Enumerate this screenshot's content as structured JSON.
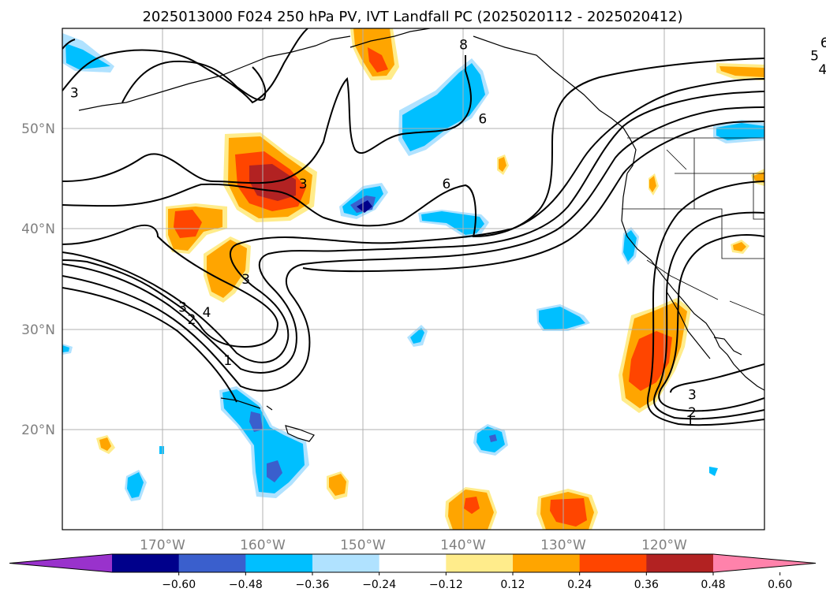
{
  "title": "2025013000 F024 250 hPa PV, IVT Landfall PC (2025020112 - 2025020412)",
  "map": {
    "lat_labels": [
      "50°N",
      "40°N",
      "30°N",
      "20°N"
    ],
    "lon_labels": [
      "170°W",
      "160°W",
      "150°W",
      "140°W",
      "130°W",
      "120°W"
    ],
    "lon_range": [
      -180,
      -110
    ],
    "lat_range": [
      10,
      60
    ],
    "contour_labels": [
      {
        "text": "6",
        "lon": -104.0,
        "lat": 58.6
      },
      {
        "text": "5",
        "lon": -105.0,
        "lat": 57.3
      },
      {
        "text": "4",
        "lon": -104.2,
        "lat": 55.9
      },
      {
        "text": "8",
        "lon": -140.0,
        "lat": 58.4
      },
      {
        "text": "6",
        "lon": -138.1,
        "lat": 51.0
      },
      {
        "text": "6",
        "lon": -141.7,
        "lat": 44.5
      },
      {
        "text": "3",
        "lon": -156.0,
        "lat": 44.5
      },
      {
        "text": "3",
        "lon": -178.8,
        "lat": 53.6
      },
      {
        "text": "3",
        "lon": -161.7,
        "lat": 35.0
      },
      {
        "text": "3",
        "lon": -168.0,
        "lat": 32.2
      },
      {
        "text": "2",
        "lon": -167.1,
        "lat": 31.0
      },
      {
        "text": "4",
        "lon": -165.6,
        "lat": 31.7
      },
      {
        "text": "1",
        "lon": -163.5,
        "lat": 26.9
      },
      {
        "text": "3",
        "lon": -117.2,
        "lat": 23.5
      },
      {
        "text": "2",
        "lon": -117.2,
        "lat": 21.7
      },
      {
        "text": "1",
        "lon": -117.4,
        "lat": 20.9
      }
    ]
  },
  "colorbar": {
    "ticks": [
      "−0.60",
      "−0.48",
      "−0.36",
      "−0.24",
      "−0.12",
      "0.12",
      "0.24",
      "0.36",
      "0.48",
      "0.60"
    ],
    "colors": [
      "#9932cc",
      "#00008b",
      "#3a5fcd",
      "#00bfff",
      "#b0e2ff",
      "#ffffff",
      "#ffec8b",
      "#ffa500",
      "#ff4500",
      "#b22222",
      "#ff82ab"
    ]
  }
}
